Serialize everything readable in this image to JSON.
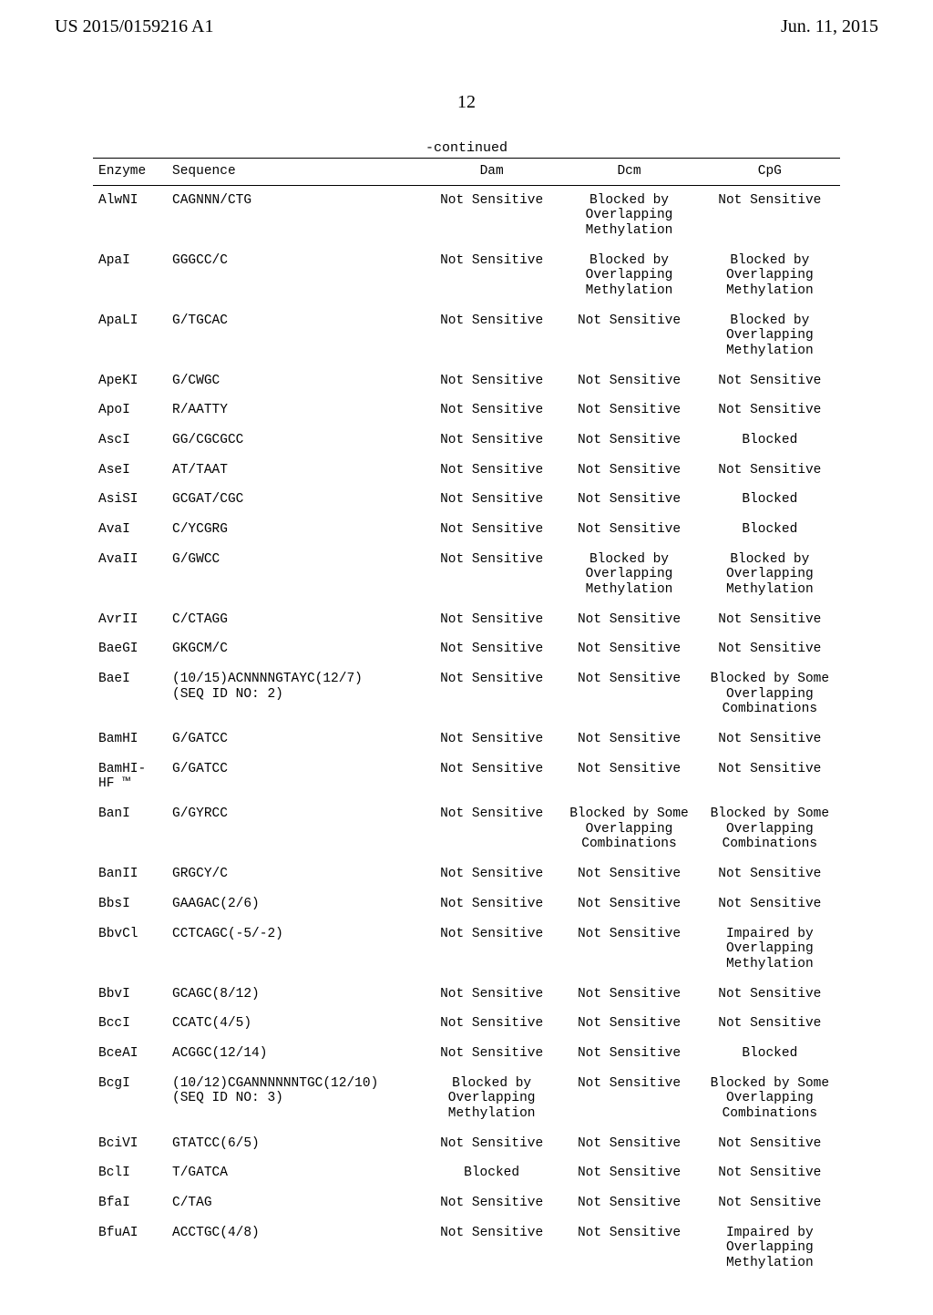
{
  "header": {
    "pub_number": "US 2015/0159216 A1",
    "pub_date": "Jun. 11, 2015"
  },
  "page_number": "12",
  "continued_label": "-continued",
  "table": {
    "columns": {
      "enzyme": "Enzyme",
      "sequence": "Sequence",
      "dam": "Dam",
      "dcm": "Dcm",
      "cpg": "CpG"
    },
    "rows": [
      {
        "enzyme": "AlwNI",
        "sequence": "CAGNNN/CTG",
        "dam": "Not Sensitive",
        "dcm": "Blocked by\nOverlapping\nMethylation",
        "cpg": "Not Sensitive"
      },
      {
        "enzyme": "ApaI",
        "sequence": "GGGCC/C",
        "dam": "Not Sensitive",
        "dcm": "Blocked by\nOverlapping\nMethylation",
        "cpg": "Blocked by\nOverlapping\nMethylation"
      },
      {
        "enzyme": "ApaLI",
        "sequence": "G/TGCAC",
        "dam": "Not Sensitive",
        "dcm": "Not Sensitive",
        "cpg": "Blocked by\nOverlapping\nMethylation"
      },
      {
        "enzyme": "ApeKI",
        "sequence": "G/CWGC",
        "dam": "Not Sensitive",
        "dcm": "Not Sensitive",
        "cpg": "Not Sensitive"
      },
      {
        "enzyme": "ApoI",
        "sequence": "R/AATTY",
        "dam": "Not Sensitive",
        "dcm": "Not Sensitive",
        "cpg": "Not Sensitive"
      },
      {
        "enzyme": "AscI",
        "sequence": "GG/CGCGCC",
        "dam": "Not Sensitive",
        "dcm": "Not Sensitive",
        "cpg": "Blocked"
      },
      {
        "enzyme": "AseI",
        "sequence": "AT/TAAT",
        "dam": "Not Sensitive",
        "dcm": "Not Sensitive",
        "cpg": "Not Sensitive"
      },
      {
        "enzyme": "AsiSI",
        "sequence": "GCGAT/CGC",
        "dam": "Not Sensitive",
        "dcm": "Not Sensitive",
        "cpg": "Blocked"
      },
      {
        "enzyme": "AvaI",
        "sequence": "C/YCGRG",
        "dam": "Not Sensitive",
        "dcm": "Not Sensitive",
        "cpg": "Blocked"
      },
      {
        "enzyme": "AvaII",
        "sequence": "G/GWCC",
        "dam": "Not Sensitive",
        "dcm": "Blocked by\nOverlapping\nMethylation",
        "cpg": "Blocked by\nOverlapping\nMethylation"
      },
      {
        "enzyme": "AvrII",
        "sequence": "C/CTAGG",
        "dam": "Not Sensitive",
        "dcm": "Not Sensitive",
        "cpg": "Not Sensitive"
      },
      {
        "enzyme": "BaeGI",
        "sequence": "GKGCM/C",
        "dam": "Not Sensitive",
        "dcm": "Not Sensitive",
        "cpg": "Not Sensitive"
      },
      {
        "enzyme": "BaeI",
        "sequence": "(10/15)ACNNNNGTAYC(12/7)\n(SEQ ID NO: 2)",
        "dam": "Not Sensitive",
        "dcm": "Not Sensitive",
        "cpg": "Blocked by Some\nOverlapping\nCombinations"
      },
      {
        "enzyme": "BamHI",
        "sequence": "G/GATCC",
        "dam": "Not Sensitive",
        "dcm": "Not Sensitive",
        "cpg": "Not Sensitive"
      },
      {
        "enzyme": "BamHI-\nHF ™",
        "sequence": "G/GATCC",
        "dam": "Not Sensitive",
        "dcm": "Not Sensitive",
        "cpg": "Not Sensitive"
      },
      {
        "enzyme": "BanI",
        "sequence": "G/GYRCC",
        "dam": "Not Sensitive",
        "dcm": "Blocked by Some\nOverlapping\nCombinations",
        "cpg": "Blocked by Some\nOverlapping\nCombinations"
      },
      {
        "enzyme": "BanII",
        "sequence": "GRGCY/C",
        "dam": "Not Sensitive",
        "dcm": "Not Sensitive",
        "cpg": "Not Sensitive"
      },
      {
        "enzyme": "BbsI",
        "sequence": "GAAGAC(2/6)",
        "dam": "Not Sensitive",
        "dcm": "Not Sensitive",
        "cpg": "Not Sensitive"
      },
      {
        "enzyme": "BbvCl",
        "sequence": "CCTCAGC(-5/-2)",
        "dam": "Not Sensitive",
        "dcm": "Not Sensitive",
        "cpg": "Impaired by\nOverlapping\nMethylation"
      },
      {
        "enzyme": "BbvI",
        "sequence": "GCAGC(8/12)",
        "dam": "Not Sensitive",
        "dcm": "Not Sensitive",
        "cpg": "Not Sensitive"
      },
      {
        "enzyme": "BccI",
        "sequence": "CCATC(4/5)",
        "dam": "Not Sensitive",
        "dcm": "Not Sensitive",
        "cpg": "Not Sensitive"
      },
      {
        "enzyme": "BceAI",
        "sequence": "ACGGC(12/14)",
        "dam": "Not Sensitive",
        "dcm": "Not Sensitive",
        "cpg": "Blocked"
      },
      {
        "enzyme": "BcgI",
        "sequence": "(10/12)CGANNNNNNTGC(12/10)\n(SEQ ID NO: 3)",
        "dam": "Blocked by\nOverlapping\nMethylation",
        "dcm": "Not Sensitive",
        "cpg": "Blocked by Some\nOverlapping\nCombinations"
      },
      {
        "enzyme": "BciVI",
        "sequence": "GTATCC(6/5)",
        "dam": "Not Sensitive",
        "dcm": "Not Sensitive",
        "cpg": "Not Sensitive"
      },
      {
        "enzyme": "BclI",
        "sequence": "T/GATCA",
        "dam": "Blocked",
        "dcm": "Not Sensitive",
        "cpg": "Not Sensitive"
      },
      {
        "enzyme": "BfaI",
        "sequence": "C/TAG",
        "dam": "Not Sensitive",
        "dcm": "Not Sensitive",
        "cpg": "Not Sensitive"
      },
      {
        "enzyme": "BfuAI",
        "sequence": "ACCTGC(4/8)",
        "dam": "Not Sensitive",
        "dcm": "Not Sensitive",
        "cpg": "Impaired by\nOverlapping\nMethylation"
      }
    ]
  }
}
